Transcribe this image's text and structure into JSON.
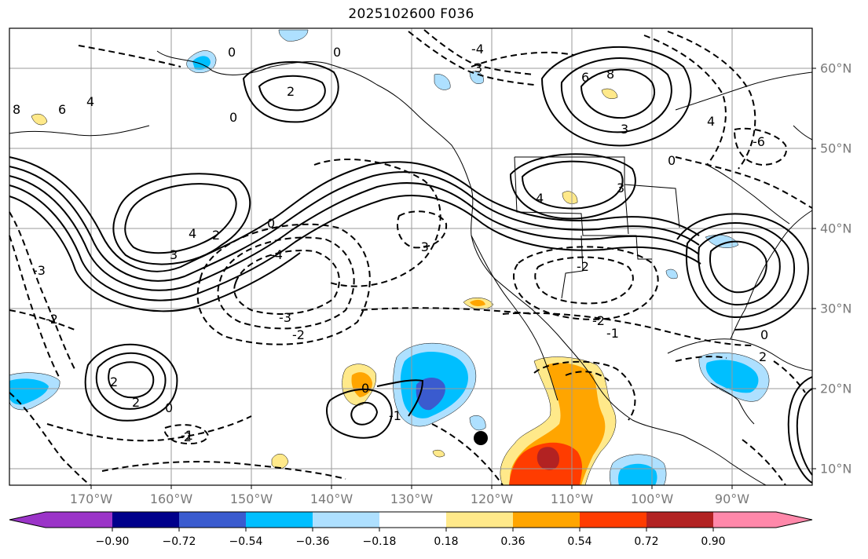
{
  "title": "2025102600 F036",
  "lat_labels": [
    "60°N",
    "50°N",
    "40°N",
    "30°N",
    "20°N",
    "10°N"
  ],
  "lon_labels": [
    "170°W",
    "160°W",
    "150°W",
    "140°W",
    "130°W",
    "120°W",
    "110°W",
    "100°W",
    "90°W"
  ],
  "colorbar": {
    "ticks": [
      "−0.90",
      "−0.72",
      "−0.54",
      "−0.36",
      "−0.18",
      "0.18",
      "0.36",
      "0.54",
      "0.72",
      "0.90"
    ],
    "colors": [
      "#9b34c8",
      "#00008b",
      "#3a5bcf",
      "#00bfff",
      "#aee0ff",
      "#ffffff",
      "#ffe98a",
      "#ffa500",
      "#ff3c00",
      "#b22222",
      "#ff88aa"
    ]
  },
  "contour_labels": [
    "0",
    "0",
    "0",
    "0",
    "0",
    "0",
    "0",
    "0",
    "2",
    "2",
    "2",
    "2",
    "2",
    "3",
    "3",
    "3",
    "3",
    "4",
    "4",
    "4",
    "4",
    "6",
    "6",
    "8",
    "8",
    "-2",
    "-2",
    "-2",
    "-2",
    "-2",
    "-3",
    "-3",
    "-3",
    "-4",
    "-4",
    "-1",
    "-1",
    "-6",
    "-1"
  ]
}
